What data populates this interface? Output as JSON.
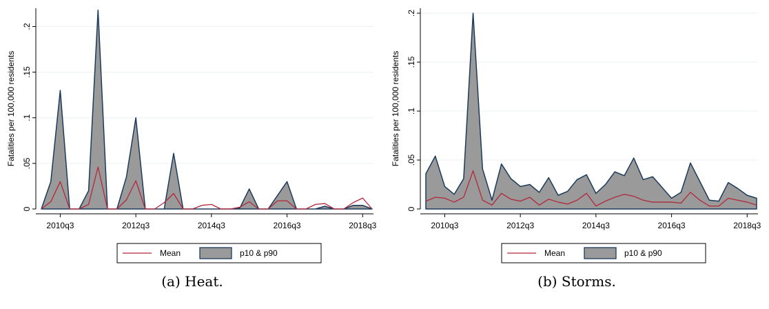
{
  "colors": {
    "mean": "#b2273b",
    "band_fill": "#9a9a9a",
    "band_edge": "#1b3a5a",
    "grid": "#eaf0f3"
  },
  "chart_data": [
    {
      "type": "area",
      "caption": "(a)  Heat.",
      "ylabel": "Fatalities per 100,000 residents",
      "yticks": [
        0,
        0.05,
        0.1,
        0.15,
        0.2
      ],
      "ytick_labels": [
        "0",
        ".05",
        ".1",
        ".15",
        ".2"
      ],
      "ylim": [
        0,
        0.22
      ],
      "xtick_labels": [
        "2010q3",
        "2012q3",
        "2014q3",
        "2016q3",
        "2018q3"
      ],
      "xtick_positions": [
        2,
        10,
        18,
        26,
        34
      ],
      "legend_placement": "bottom",
      "x": [
        "2010q1",
        "2010q2",
        "2010q3",
        "2010q4",
        "2011q1",
        "2011q2",
        "2011q3",
        "2011q4",
        "2012q1",
        "2012q2",
        "2012q3",
        "2012q4",
        "2013q1",
        "2013q2",
        "2013q3",
        "2013q4",
        "2014q1",
        "2014q2",
        "2014q3",
        "2014q4",
        "2015q1",
        "2015q2",
        "2015q3",
        "2015q4",
        "2016q1",
        "2016q2",
        "2016q3",
        "2016q4",
        "2017q1",
        "2017q2",
        "2017q3",
        "2017q4",
        "2018q1",
        "2018q2",
        "2018q3",
        "2018q4"
      ],
      "series": [
        {
          "name": "Mean",
          "kind": "line",
          "values": [
            0,
            0.008,
            0.03,
            0,
            0,
            0.005,
            0.046,
            0,
            0,
            0.01,
            0.031,
            0,
            0,
            0.007,
            0.017,
            0,
            0,
            0.004,
            0.005,
            0,
            0,
            0.002,
            0.008,
            0,
            0,
            0.009,
            0.009,
            0,
            0,
            0.005,
            0.006,
            0,
            0,
            0.007,
            0.012,
            0
          ]
        },
        {
          "name": "p10 & p90",
          "kind": "band",
          "lower": [
            0,
            0,
            0,
            0,
            0,
            0,
            0,
            0,
            0,
            0,
            0,
            0,
            0,
            0,
            0,
            0,
            0,
            0,
            0,
            0,
            0,
            0,
            0,
            0,
            0,
            0,
            0,
            0,
            0,
            0,
            0,
            0,
            0,
            0,
            0,
            0
          ],
          "upper": [
            0,
            0.03,
            0.13,
            0,
            0,
            0.02,
            0.218,
            0,
            0,
            0.035,
            0.1,
            0,
            0,
            0,
            0.061,
            0,
            0,
            0,
            0,
            0,
            0,
            0.001,
            0.022,
            0,
            0,
            0.015,
            0.03,
            0,
            0,
            0,
            0.003,
            0,
            0,
            0.004,
            0.004,
            0
          ]
        }
      ]
    },
    {
      "type": "area",
      "caption": "(b)  Storms.",
      "ylabel": "Fatalities per 100,000 residents",
      "yticks": [
        0,
        0.05,
        0.1,
        0.15,
        0.2
      ],
      "ytick_labels": [
        "0",
        ".05",
        ".1",
        ".15",
        ".2"
      ],
      "ylim": [
        0,
        0.205
      ],
      "xtick_labels": [
        "2010q3",
        "2012q3",
        "2014q3",
        "2016q3",
        "2018q3"
      ],
      "xtick_positions": [
        2,
        10,
        18,
        26,
        34
      ],
      "legend_placement": "bottom",
      "x": [
        "2010q1",
        "2010q2",
        "2010q3",
        "2010q4",
        "2011q1",
        "2011q2",
        "2011q3",
        "2011q4",
        "2012q1",
        "2012q2",
        "2012q3",
        "2012q4",
        "2013q1",
        "2013q2",
        "2013q3",
        "2013q4",
        "2014q1",
        "2014q2",
        "2014q3",
        "2014q4",
        "2015q1",
        "2015q2",
        "2015q3",
        "2015q4",
        "2016q1",
        "2016q2",
        "2016q3",
        "2016q4",
        "2017q1",
        "2017q2",
        "2017q3",
        "2017q4",
        "2018q1",
        "2018q2",
        "2018q3",
        "2018q4"
      ],
      "series": [
        {
          "name": "Mean",
          "kind": "line",
          "values": [
            0.008,
            0.012,
            0.011,
            0.007,
            0.012,
            0.039,
            0.009,
            0.004,
            0.016,
            0.01,
            0.008,
            0.012,
            0.004,
            0.01,
            0.007,
            0.005,
            0.009,
            0.016,
            0.003,
            0.008,
            0.012,
            0.015,
            0.013,
            0.009,
            0.007,
            0.007,
            0.007,
            0.006,
            0.017,
            0.009,
            0.003,
            0.003,
            0.011,
            0.009,
            0.007,
            0.004
          ]
        },
        {
          "name": "p10 & p90",
          "kind": "band",
          "lower": [
            0,
            0,
            0,
            0,
            0,
            0,
            0,
            0,
            0,
            0,
            0,
            0,
            0,
            0,
            0,
            0,
            0,
            0,
            0,
            0,
            0,
            0,
            0,
            0,
            0,
            0,
            0,
            0,
            0,
            0,
            0,
            0,
            0,
            0,
            0,
            0
          ],
          "upper": [
            0.036,
            0.054,
            0.023,
            0.015,
            0.031,
            0.2,
            0.041,
            0.009,
            0.046,
            0.031,
            0.023,
            0.025,
            0.017,
            0.032,
            0.014,
            0.018,
            0.03,
            0.035,
            0.016,
            0.025,
            0.038,
            0.034,
            0.052,
            0.03,
            0.033,
            0.022,
            0.011,
            0.017,
            0.047,
            0.028,
            0.009,
            0.008,
            0.027,
            0.021,
            0.014,
            0.011
          ]
        }
      ]
    }
  ]
}
